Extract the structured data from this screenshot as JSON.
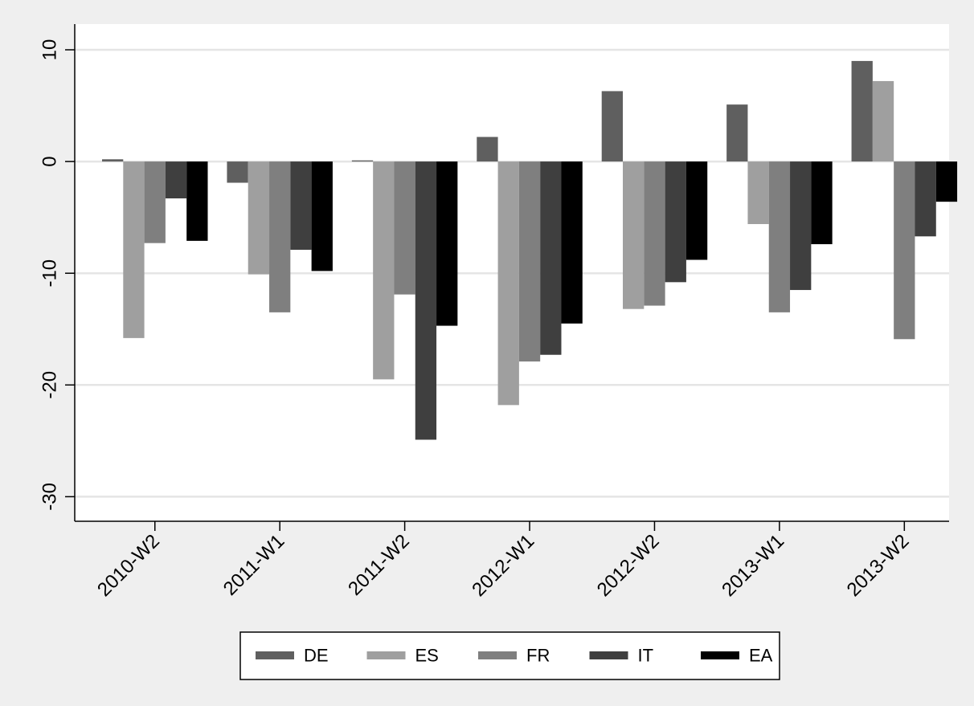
{
  "chart_data": {
    "type": "bar",
    "categories": [
      "2010-W2",
      "2011-W1",
      "2011-W2",
      "2012-W1",
      "2012-W2",
      "2013-W1",
      "2013-W2"
    ],
    "series": [
      {
        "name": "DE",
        "color": "#5f5f5f",
        "values": [
          0.2,
          -1.9,
          0.1,
          2.2,
          6.3,
          5.1,
          9.0
        ]
      },
      {
        "name": "ES",
        "color": "#9f9f9f",
        "values": [
          -15.8,
          -10.1,
          -19.5,
          -21.8,
          -13.2,
          -5.6,
          7.2
        ]
      },
      {
        "name": "FR",
        "color": "#7f7f7f",
        "values": [
          -7.3,
          -13.5,
          -11.9,
          -17.9,
          -12.9,
          -13.5,
          -15.9
        ]
      },
      {
        "name": "IT",
        "color": "#3f3f3f",
        "values": [
          -3.3,
          -7.9,
          -24.9,
          -17.3,
          -10.8,
          -11.5,
          -6.7
        ]
      },
      {
        "name": "EA",
        "color": "#000000",
        "values": [
          -7.1,
          -9.8,
          -14.7,
          -14.5,
          -8.8,
          -7.4,
          -3.6
        ]
      }
    ],
    "yticks": [
      10,
      0,
      -10,
      -20,
      -30
    ],
    "ylim": [
      -32.2,
      12.3
    ],
    "grid": true,
    "legend_position": "bottom",
    "title": "",
    "xlabel": "",
    "ylabel": ""
  }
}
